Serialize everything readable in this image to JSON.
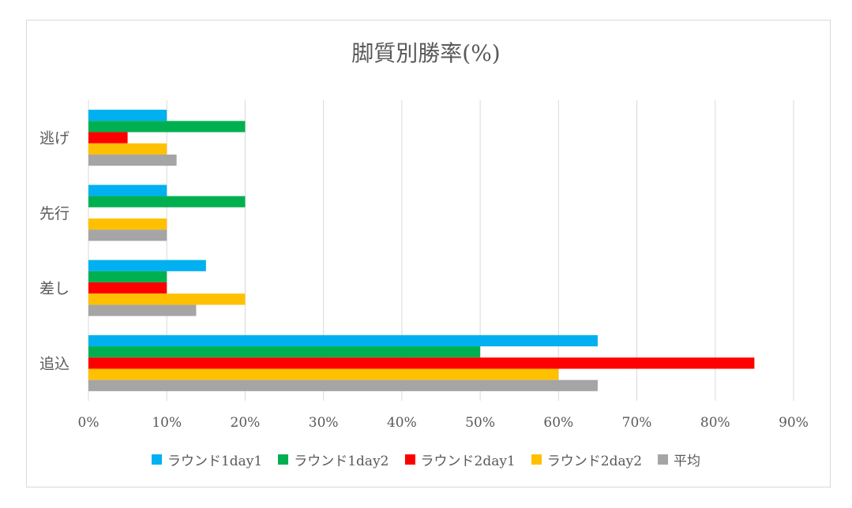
{
  "chart_data": {
    "type": "bar",
    "orientation": "horizontal",
    "title": "脚質別勝率(%)",
    "categories": [
      "逃げ",
      "先行",
      "差し",
      "追込"
    ],
    "series": [
      {
        "name": "ラウンド1day1",
        "color": "#00b0f0",
        "values": [
          10,
          10,
          15,
          65
        ]
      },
      {
        "name": "ラウンド1day2",
        "color": "#00b050",
        "values": [
          20,
          20,
          10,
          50
        ]
      },
      {
        "name": "ラウンド2day1",
        "color": "#ff0000",
        "values": [
          5,
          0,
          10,
          85
        ]
      },
      {
        "name": "ラウンド2day2",
        "color": "#ffc000",
        "values": [
          10,
          10,
          20,
          60
        ]
      },
      {
        "name": "平均",
        "color": "#a5a5a5",
        "values": [
          11.25,
          10,
          13.75,
          65
        ]
      }
    ],
    "xlim": [
      0,
      90
    ],
    "xticks": [
      "0%",
      "10%",
      "20%",
      "30%",
      "40%",
      "50%",
      "60%",
      "70%",
      "80%",
      "90%"
    ],
    "grid": true,
    "legend_position": "bottom"
  }
}
